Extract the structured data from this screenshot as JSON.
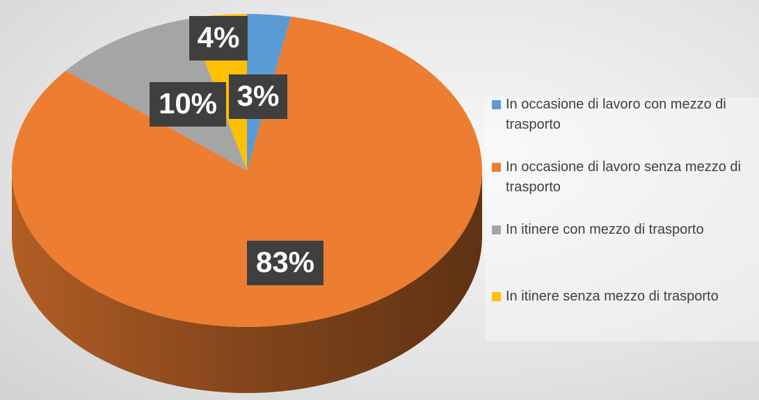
{
  "chart_data": {
    "type": "pie",
    "categories": [
      "In occasione di lavoro con mezzo di trasporto",
      "In occasione di lavoro senza mezzo di trasporto",
      "In itinere con mezzo di trasporto",
      "In itinere senza mezzo di trasporto"
    ],
    "values": [
      3,
      83,
      10,
      4
    ],
    "value_labels": [
      "3%",
      "83%",
      "10%",
      "4%"
    ],
    "colors": [
      "#5b9bd5",
      "#ed7d31",
      "#a5a5a5",
      "#ffc000"
    ],
    "legend": "right"
  }
}
